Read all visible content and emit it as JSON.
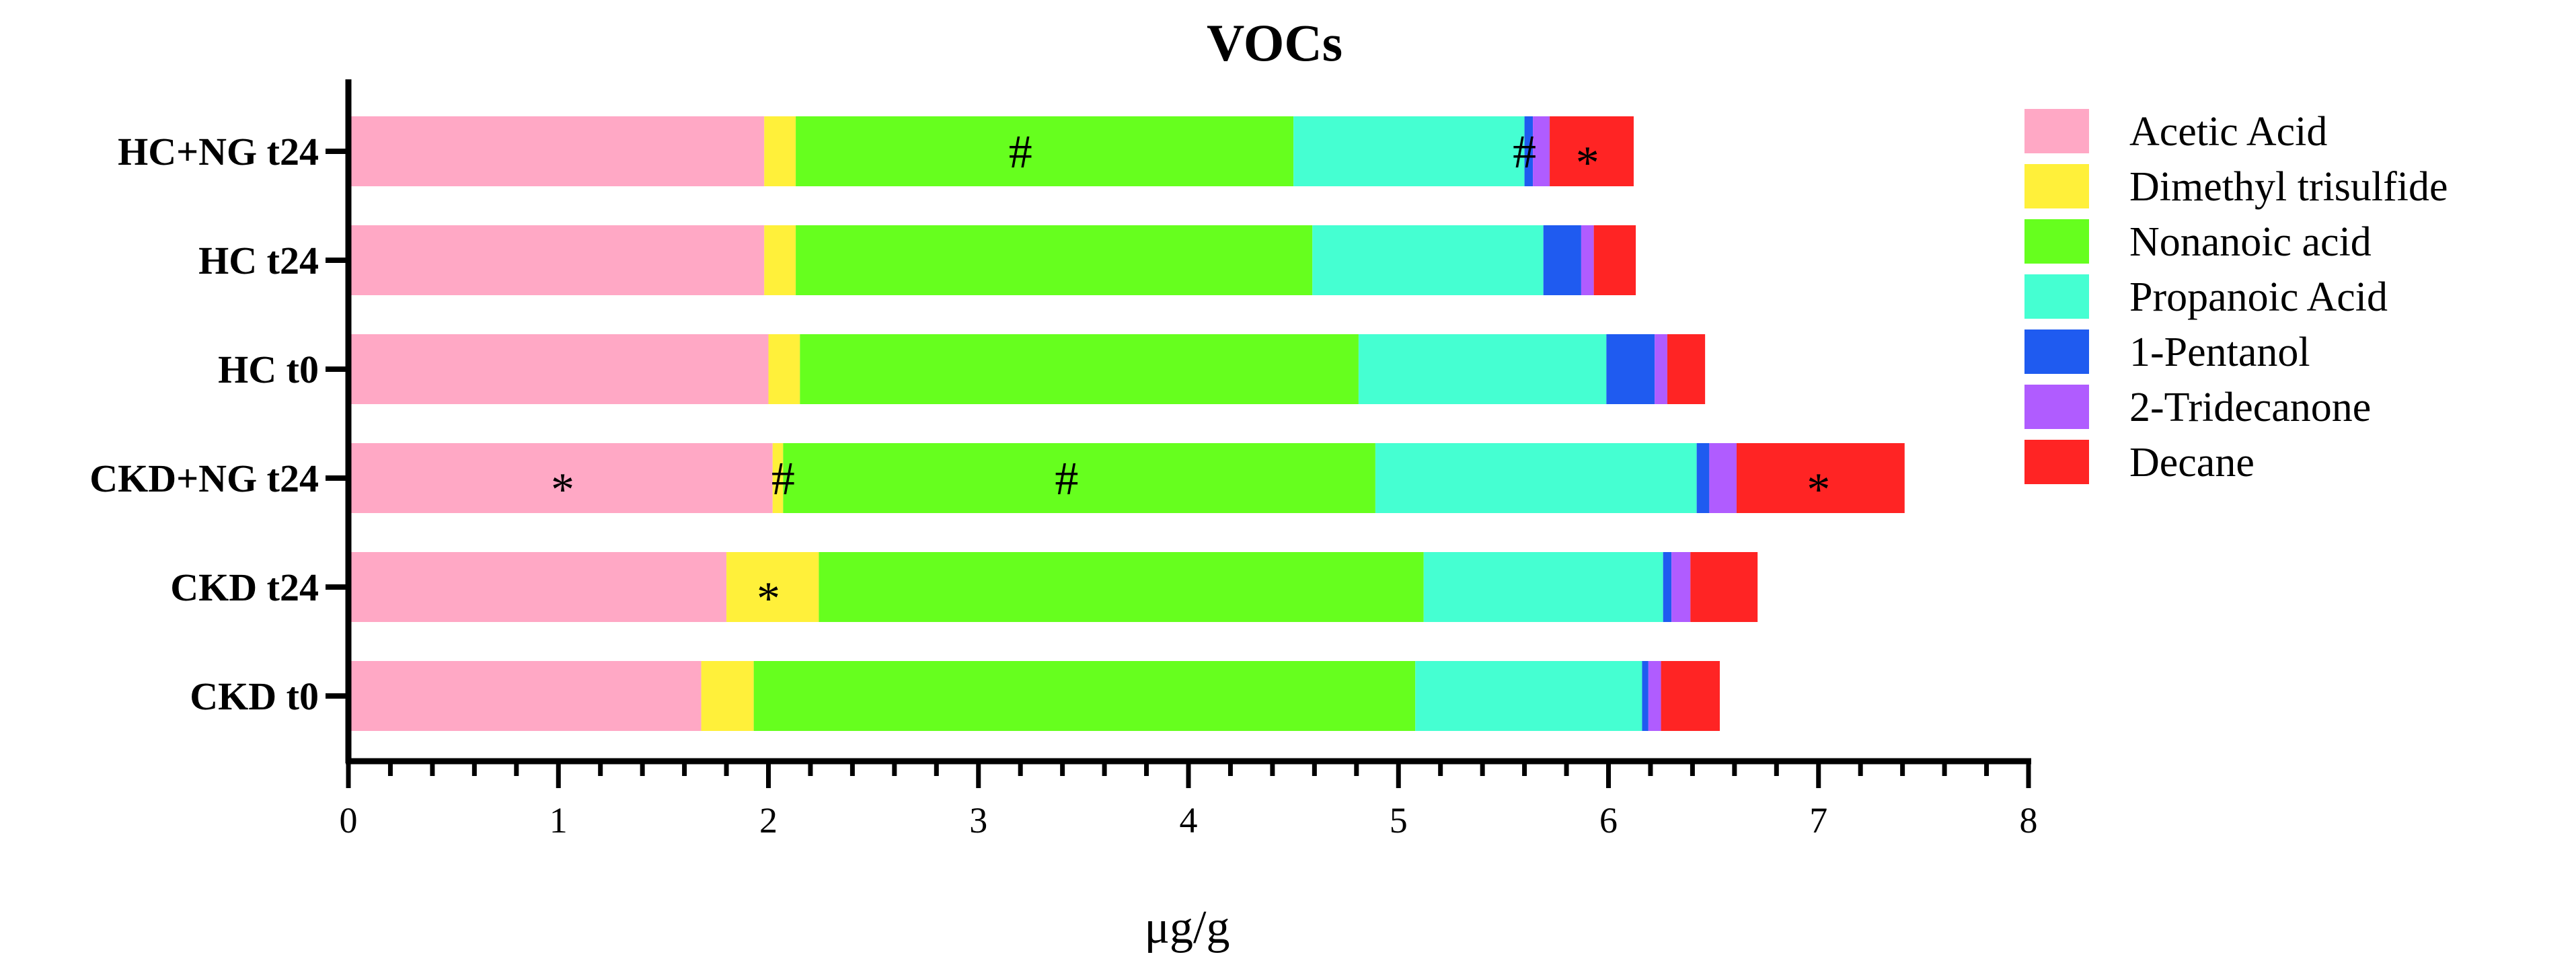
{
  "chart_data": {
    "type": "bar",
    "orientation": "horizontal",
    "stacked": true,
    "title": "VOCs",
    "xlabel": "μg/g",
    "ylabel": "",
    "xlim": [
      0,
      8
    ],
    "x_ticks": [
      0,
      1,
      2,
      3,
      4,
      5,
      6,
      7,
      8
    ],
    "x_tick_labels": [
      "0",
      "1",
      "2",
      "3",
      "4",
      "5",
      "6",
      "7",
      "8"
    ],
    "grid": false,
    "legend_position": "right",
    "categories": [
      "HC+NG t24",
      "HC t24",
      "HC t0",
      "CKD+NG t24",
      "CKD t24",
      "CKD t0"
    ],
    "series": [
      {
        "name": "Acetic Acid",
        "color": "#FFA8C5",
        "values": [
          1.98,
          1.98,
          2.0,
          2.02,
          1.8,
          1.68
        ]
      },
      {
        "name": "Dimethyl trisulfide",
        "color": "#FFF03A",
        "values": [
          0.15,
          0.15,
          0.15,
          0.05,
          0.44,
          0.25
        ]
      },
      {
        "name": "Nonanoic acid",
        "color": "#66FF1E",
        "values": [
          2.37,
          2.46,
          2.66,
          2.82,
          2.88,
          3.15
        ]
      },
      {
        "name": "Propanoic Acid",
        "color": "#45FFD2",
        "values": [
          1.1,
          1.1,
          1.18,
          1.53,
          1.14,
          1.08
        ]
      },
      {
        "name": "1-Pentanol",
        "color": "#1F5BF0",
        "values": [
          0.04,
          0.18,
          0.23,
          0.06,
          0.04,
          0.03
        ]
      },
      {
        "name": "2-Tridecanone",
        "color": "#B05CFF",
        "values": [
          0.08,
          0.06,
          0.06,
          0.13,
          0.09,
          0.06
        ]
      },
      {
        "name": "Decane",
        "color": "#FF2424",
        "values": [
          0.4,
          0.2,
          0.18,
          0.8,
          0.32,
          0.28
        ]
      }
    ],
    "annotations": [
      {
        "category": "HC+NG t24",
        "x": 3.2,
        "text": "#"
      },
      {
        "category": "HC+NG t24",
        "x": 5.6,
        "text": "#"
      },
      {
        "category": "HC+NG t24",
        "x": 5.9,
        "text": "*"
      },
      {
        "category": "CKD+NG t24",
        "x": 1.02,
        "text": "*"
      },
      {
        "category": "CKD+NG t24",
        "x": 2.07,
        "text": "#"
      },
      {
        "category": "CKD+NG t24",
        "x": 3.42,
        "text": "#"
      },
      {
        "category": "CKD+NG t24",
        "x": 7.0,
        "text": "*"
      },
      {
        "category": "CKD t24",
        "x": 2.0,
        "text": "*"
      }
    ]
  }
}
